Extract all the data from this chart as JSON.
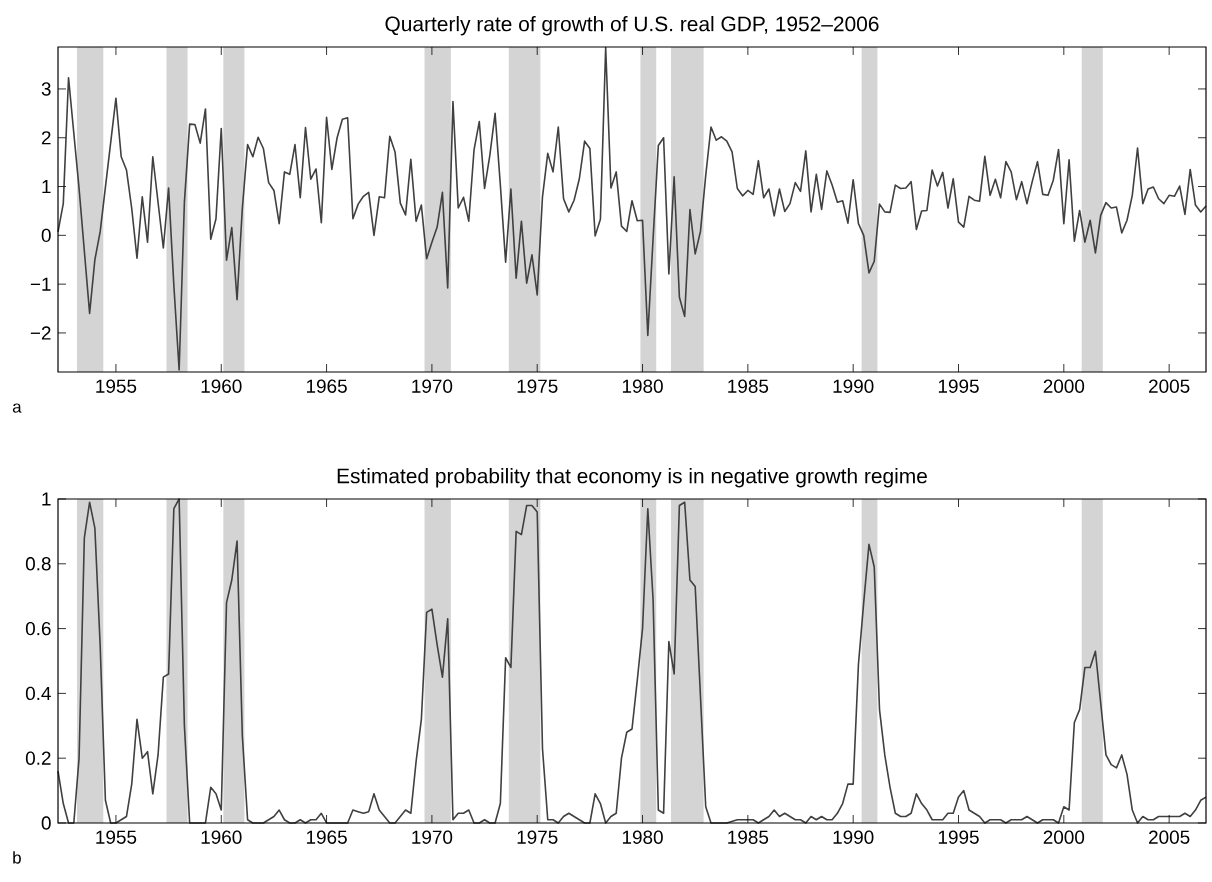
{
  "chart_data": [
    {
      "type": "line",
      "title": "Quarterly rate of growth of U.S. real GDP, 1952–2006",
      "annotations": [
        "a"
      ],
      "xlim": [
        1952.25,
        2006.75
      ],
      "ylim": [
        -2.8,
        3.86
      ],
      "xticks": [
        1955,
        1960,
        1965,
        1970,
        1975,
        1980,
        1985,
        1990,
        1995,
        2000,
        2005
      ],
      "yticks": [
        {
          "value": -2,
          "label": "−2"
        },
        {
          "value": -1,
          "label": "−1"
        },
        0,
        1,
        2,
        3
      ],
      "bands": [
        {
          "axis": "x",
          "from": 1953.15,
          "to": 1954.4,
          "color": "#d4d4d4"
        },
        {
          "axis": "x",
          "from": 1957.4,
          "to": 1958.4,
          "color": "#d4d4d4"
        },
        {
          "axis": "x",
          "from": 1960.1,
          "to": 1961.1,
          "color": "#d4d4d4"
        },
        {
          "axis": "x",
          "from": 1969.65,
          "to": 1970.9,
          "color": "#d4d4d4"
        },
        {
          "axis": "x",
          "from": 1973.65,
          "to": 1975.15,
          "color": "#d4d4d4"
        },
        {
          "axis": "x",
          "from": 1979.9,
          "to": 1980.65,
          "color": "#d4d4d4"
        },
        {
          "axis": "x",
          "from": 1981.35,
          "to": 1982.9,
          "color": "#d4d4d4"
        },
        {
          "axis": "x",
          "from": 1990.4,
          "to": 1991.15,
          "color": "#d4d4d4"
        },
        {
          "axis": "x",
          "from": 2000.85,
          "to": 2001.85,
          "color": "#d4d4d4"
        }
      ],
      "series": [
        {
          "color": "#404040",
          "x": [
            1952.25,
            1952.5,
            1952.75,
            1953.25,
            1953.75,
            1954.0,
            1954.25,
            1955.0,
            1955.25,
            1955.5,
            1955.75,
            1956.0,
            1956.25,
            1956.5,
            1956.75,
            1957.25,
            1957.5,
            1957.75,
            1958.0,
            1958.25,
            1958.5,
            1958.75,
            1959.0,
            1959.25,
            1959.5,
            1959.75,
            1960.0,
            1960.25,
            1960.5,
            1960.75,
            1961.0,
            1961.25,
            1961.5,
            1961.75,
            1962.0,
            1962.25,
            1962.5,
            1962.75,
            1963.0,
            1963.25,
            1963.5,
            1963.75,
            1964.0,
            1964.25,
            1964.5,
            1964.75,
            1965.0,
            1965.25,
            1965.5,
            1965.75,
            1966.0,
            1966.25,
            1966.5,
            1966.75,
            1967.0,
            1967.25,
            1967.5,
            1967.75,
            1968.0,
            1968.25,
            1968.5,
            1968.75,
            1969.0,
            1969.25,
            1969.5,
            1969.75,
            1970.0,
            1970.25,
            1970.5,
            1970.75,
            1971.0,
            1971.25,
            1971.5,
            1971.75,
            1972.0,
            1972.25,
            1972.5,
            1972.75,
            1973.0,
            1973.25,
            1973.5,
            1973.75,
            1974.0,
            1974.25,
            1974.5,
            1974.75,
            1975.0,
            1975.25,
            1975.5,
            1975.75,
            1976.0,
            1976.25,
            1976.5,
            1976.75,
            1977.0,
            1977.25,
            1977.5,
            1977.75,
            1978.0,
            1978.25,
            1978.5,
            1978.75,
            1979.0,
            1979.25,
            1979.5,
            1979.75,
            1980.0,
            1980.25,
            1980.5,
            1980.75,
            1981.0,
            1981.25,
            1981.5,
            1981.75,
            1982.0,
            1982.25,
            1982.5,
            1982.75,
            1983.0,
            1983.25,
            1983.5,
            1983.75,
            1984.0,
            1984.25,
            1984.5,
            1984.75,
            1985.0,
            1985.25,
            1985.5,
            1985.75,
            1986.0,
            1986.25,
            1986.5,
            1986.75,
            1987.0,
            1987.25,
            1987.5,
            1987.75,
            1988.0,
            1988.25,
            1988.5,
            1988.75,
            1989.0,
            1989.25,
            1989.5,
            1989.75,
            1990.0,
            1990.25,
            1990.5,
            1990.75,
            1991.0,
            1991.25,
            1991.5,
            1991.75,
            1992.0,
            1992.25,
            1992.5,
            1992.75,
            1993.0,
            1993.25,
            1993.5,
            1993.75,
            1994.0,
            1994.25,
            1994.5,
            1994.75,
            1995.0,
            1995.25,
            1995.5,
            1995.75,
            1996.0,
            1996.25,
            1996.5,
            1996.75,
            1997.0,
            1997.25,
            1997.5,
            1997.75,
            1998.0,
            1998.25,
            1998.5,
            1998.75,
            1999.0,
            1999.25,
            1999.5,
            1999.75,
            2000.0,
            2000.25,
            2000.5,
            2000.75,
            2001.0,
            2001.25,
            2001.5,
            2001.75,
            2002.0,
            2002.25,
            2002.5,
            2002.75,
            2003.0,
            2003.25,
            2003.5,
            2003.75,
            2004.0,
            2004.25,
            2004.5,
            2004.75,
            2005.0,
            2005.25,
            2005.5,
            2005.75,
            2006.0,
            2006.25,
            2006.5,
            2006.75
          ],
          "values": [
            0.07,
            0.65,
            3.23,
            0.96,
            -1.6,
            -0.5,
            0.07,
            2.81,
            1.61,
            1.34,
            0.55,
            -0.47,
            0.79,
            -0.14,
            1.61,
            -0.26,
            0.97,
            -1.03,
            -2.76,
            0.68,
            2.28,
            2.27,
            1.89,
            2.59,
            -0.08,
            0.34,
            2.19,
            -0.51,
            0.16,
            -1.32,
            0.55,
            1.86,
            1.61,
            2.01,
            1.78,
            1.08,
            0.92,
            0.24,
            1.3,
            1.25,
            1.86,
            0.77,
            2.21,
            1.15,
            1.36,
            0.26,
            2.42,
            1.35,
            2.0,
            2.38,
            2.41,
            0.34,
            0.64,
            0.8,
            0.88,
            0.0,
            0.79,
            0.77,
            2.03,
            1.71,
            0.66,
            0.42,
            1.56,
            0.29,
            0.62,
            -0.48,
            -0.14,
            0.17,
            0.88,
            -1.08,
            2.74,
            0.56,
            0.78,
            0.29,
            1.75,
            2.33,
            0.96,
            1.64,
            2.5,
            1.03,
            -0.55,
            0.95,
            -0.88,
            0.29,
            -0.98,
            -0.4,
            -1.22,
            0.79,
            1.68,
            1.3,
            2.22,
            0.75,
            0.48,
            0.72,
            1.16,
            1.93,
            1.78,
            -0.01,
            0.33,
            3.85,
            0.97,
            1.3,
            0.19,
            0.08,
            0.71,
            0.3,
            0.31,
            -2.05,
            -0.07,
            1.84,
            2.0,
            -0.79,
            1.2,
            -1.27,
            -1.66,
            0.53,
            -0.38,
            0.08,
            1.23,
            2.22,
            1.95,
            2.02,
            1.93,
            1.71,
            0.96,
            0.81,
            0.92,
            0.84,
            1.53,
            0.77,
            0.95,
            0.4,
            0.95,
            0.49,
            0.65,
            1.08,
            0.9,
            1.73,
            0.48,
            1.25,
            0.53,
            1.32,
            1.03,
            0.68,
            0.71,
            0.25,
            1.14,
            0.24,
            0.0,
            -0.77,
            -0.53,
            0.64,
            0.48,
            0.47,
            1.03,
            0.96,
            0.97,
            1.1,
            0.12,
            0.5,
            0.51,
            1.34,
            1.01,
            1.29,
            0.56,
            1.16,
            0.27,
            0.17,
            0.8,
            0.72,
            0.7,
            1.62,
            0.82,
            1.15,
            0.77,
            1.51,
            1.3,
            0.73,
            1.1,
            0.65,
            1.1,
            1.51,
            0.84,
            0.82,
            1.13,
            1.76,
            0.24,
            1.55,
            -0.12,
            0.51,
            -0.14,
            0.31,
            -0.36,
            0.41,
            0.67,
            0.56,
            0.58,
            0.05,
            0.31,
            0.82,
            1.79,
            0.65,
            0.95,
            0.99,
            0.75,
            0.65,
            0.82,
            0.8,
            1.01,
            0.43,
            1.35,
            0.62,
            0.48,
            0.6
          ]
        }
      ]
    },
    {
      "type": "line",
      "title": "Estimated probability that economy is in negative growth regime",
      "annotations": [
        "b"
      ],
      "xlim": [
        1952.25,
        2006.75
      ],
      "ylim": [
        0,
        1
      ],
      "xticks": [
        1955,
        1960,
        1965,
        1970,
        1975,
        1980,
        1985,
        1990,
        1995,
        2000,
        2005
      ],
      "yticks": [
        0,
        0.2,
        0.4,
        0.6,
        0.8,
        1
      ],
      "bands": [
        {
          "axis": "x",
          "from": 1953.15,
          "to": 1954.4,
          "color": "#d4d4d4"
        },
        {
          "axis": "x",
          "from": 1957.4,
          "to": 1958.4,
          "color": "#d4d4d4"
        },
        {
          "axis": "x",
          "from": 1960.1,
          "to": 1961.1,
          "color": "#d4d4d4"
        },
        {
          "axis": "x",
          "from": 1969.65,
          "to": 1970.9,
          "color": "#d4d4d4"
        },
        {
          "axis": "x",
          "from": 1973.65,
          "to": 1975.15,
          "color": "#d4d4d4"
        },
        {
          "axis": "x",
          "from": 1979.9,
          "to": 1980.65,
          "color": "#d4d4d4"
        },
        {
          "axis": "x",
          "from": 1981.35,
          "to": 1982.9,
          "color": "#d4d4d4"
        },
        {
          "axis": "x",
          "from": 1990.4,
          "to": 1991.15,
          "color": "#d4d4d4"
        },
        {
          "axis": "x",
          "from": 2000.85,
          "to": 2001.85,
          "color": "#d4d4d4"
        }
      ],
      "series": [
        {
          "color": "#404040",
          "x": [
            1952.25,
            1952.5,
            1952.75,
            1953.0,
            1953.25,
            1953.5,
            1953.75,
            1954.0,
            1954.25,
            1954.5,
            1954.75,
            1955.0,
            1955.25,
            1955.5,
            1955.75,
            1956.0,
            1956.25,
            1956.5,
            1956.75,
            1957.0,
            1957.25,
            1957.5,
            1957.75,
            1958.0,
            1958.25,
            1958.5,
            1958.75,
            1959.0,
            1959.25,
            1959.5,
            1959.75,
            1960.0,
            1960.25,
            1960.5,
            1960.75,
            1961.0,
            1961.25,
            1961.5,
            1961.75,
            1962.0,
            1962.25,
            1962.5,
            1962.75,
            1963.0,
            1963.25,
            1963.5,
            1963.75,
            1964.0,
            1964.25,
            1964.5,
            1964.75,
            1965.0,
            1965.5,
            1966.0,
            1966.25,
            1966.5,
            1966.75,
            1967.0,
            1967.25,
            1967.5,
            1967.75,
            1968.0,
            1968.25,
            1968.5,
            1968.75,
            1969.0,
            1969.25,
            1969.5,
            1969.75,
            1970.0,
            1970.25,
            1970.5,
            1970.75,
            1971.0,
            1971.25,
            1971.5,
            1971.75,
            1972.0,
            1972.25,
            1972.5,
            1972.75,
            1973.0,
            1973.25,
            1973.5,
            1973.75,
            1974.0,
            1974.25,
            1974.5,
            1974.75,
            1975.0,
            1975.25,
            1975.5,
            1975.75,
            1976.0,
            1976.25,
            1976.5,
            1976.75,
            1977.0,
            1977.25,
            1977.5,
            1977.75,
            1978.0,
            1978.25,
            1978.5,
            1978.75,
            1979.0,
            1979.25,
            1979.5,
            1979.75,
            1980.0,
            1980.25,
            1980.5,
            1980.75,
            1981.0,
            1981.25,
            1981.5,
            1981.75,
            1982.0,
            1982.25,
            1982.5,
            1983.0,
            1983.25,
            1983.5,
            1984.0,
            1984.5,
            1984.75,
            1985.0,
            1985.25,
            1985.5,
            1985.75,
            1986.0,
            1986.25,
            1986.5,
            1986.75,
            1987.0,
            1987.25,
            1987.5,
            1987.75,
            1988.0,
            1988.25,
            1988.5,
            1988.75,
            1989.0,
            1989.25,
            1989.5,
            1989.75,
            1990.0,
            1990.25,
            1990.5,
            1990.75,
            1991.0,
            1991.25,
            1991.5,
            1991.75,
            1992.0,
            1992.25,
            1992.5,
            1992.75,
            1993.0,
            1993.25,
            1993.5,
            1993.75,
            1994.0,
            1994.25,
            1994.5,
            1994.75,
            1995.0,
            1995.25,
            1995.5,
            1995.75,
            1996.0,
            1996.25,
            1996.5,
            1996.75,
            1997.0,
            1997.25,
            1997.5,
            1997.75,
            1998.0,
            1998.25,
            1998.5,
            1998.75,
            1999.0,
            1999.25,
            1999.5,
            1999.75,
            2000.0,
            2000.25,
            2000.5,
            2000.75,
            2001.0,
            2001.25,
            2001.5,
            2001.75,
            2002.0,
            2002.25,
            2002.5,
            2002.75,
            2003.0,
            2003.25,
            2003.5,
            2003.75,
            2004.0,
            2004.25,
            2004.5,
            2004.75,
            2005.0,
            2005.25,
            2005.5,
            2005.75,
            2006.0,
            2006.25,
            2006.5,
            2006.75
          ],
          "values": [
            0.16,
            0.06,
            0.0,
            0.0,
            0.2,
            0.88,
            0.99,
            0.91,
            0.55,
            0.07,
            0.0,
            0.0,
            0.01,
            0.02,
            0.12,
            0.32,
            0.2,
            0.22,
            0.09,
            0.21,
            0.45,
            0.46,
            0.97,
            1.0,
            0.3,
            0.0,
            0.0,
            0.0,
            0.0,
            0.11,
            0.09,
            0.04,
            0.68,
            0.75,
            0.87,
            0.27,
            0.01,
            0.0,
            0.0,
            0.0,
            0.01,
            0.02,
            0.04,
            0.01,
            0.0,
            0.0,
            0.01,
            0.0,
            0.01,
            0.01,
            0.03,
            0.0,
            0.0,
            0.0,
            0.04,
            0.035,
            0.03,
            0.035,
            0.09,
            0.04,
            0.02,
            0.0,
            0.0,
            0.02,
            0.04,
            0.03,
            0.19,
            0.32,
            0.65,
            0.66,
            0.55,
            0.45,
            0.63,
            0.01,
            0.03,
            0.03,
            0.04,
            0.0,
            0.0,
            0.01,
            0.0,
            0.0,
            0.06,
            0.51,
            0.48,
            0.9,
            0.89,
            0.98,
            0.98,
            0.96,
            0.23,
            0.01,
            0.01,
            0.0,
            0.02,
            0.03,
            0.02,
            0.01,
            0.0,
            0.0,
            0.09,
            0.06,
            0.0,
            0.02,
            0.03,
            0.2,
            0.28,
            0.29,
            0.44,
            0.6,
            0.97,
            0.69,
            0.04,
            0.03,
            0.56,
            0.46,
            0.98,
            0.99,
            0.75,
            0.73,
            0.05,
            0.0,
            0.0,
            0.0,
            0.01,
            0.01,
            0.01,
            0.01,
            0.0,
            0.01,
            0.02,
            0.04,
            0.02,
            0.03,
            0.02,
            0.01,
            0.01,
            0.0,
            0.02,
            0.01,
            0.02,
            0.01,
            0.01,
            0.03,
            0.06,
            0.12,
            0.12,
            0.49,
            0.68,
            0.86,
            0.79,
            0.35,
            0.21,
            0.11,
            0.03,
            0.02,
            0.02,
            0.03,
            0.09,
            0.06,
            0.04,
            0.01,
            0.01,
            0.01,
            0.03,
            0.03,
            0.08,
            0.1,
            0.04,
            0.03,
            0.02,
            0.0,
            0.01,
            0.01,
            0.01,
            0.0,
            0.01,
            0.01,
            0.01,
            0.02,
            0.01,
            0.0,
            0.01,
            0.01,
            0.01,
            0.0,
            0.05,
            0.04,
            0.31,
            0.35,
            0.48,
            0.48,
            0.53,
            0.37,
            0.21,
            0.18,
            0.17,
            0.21,
            0.15,
            0.04,
            0.0,
            0.02,
            0.01,
            0.01,
            0.02,
            0.02,
            0.02,
            0.02,
            0.02,
            0.03,
            0.02,
            0.04,
            0.07,
            0.08
          ]
        }
      ]
    }
  ]
}
